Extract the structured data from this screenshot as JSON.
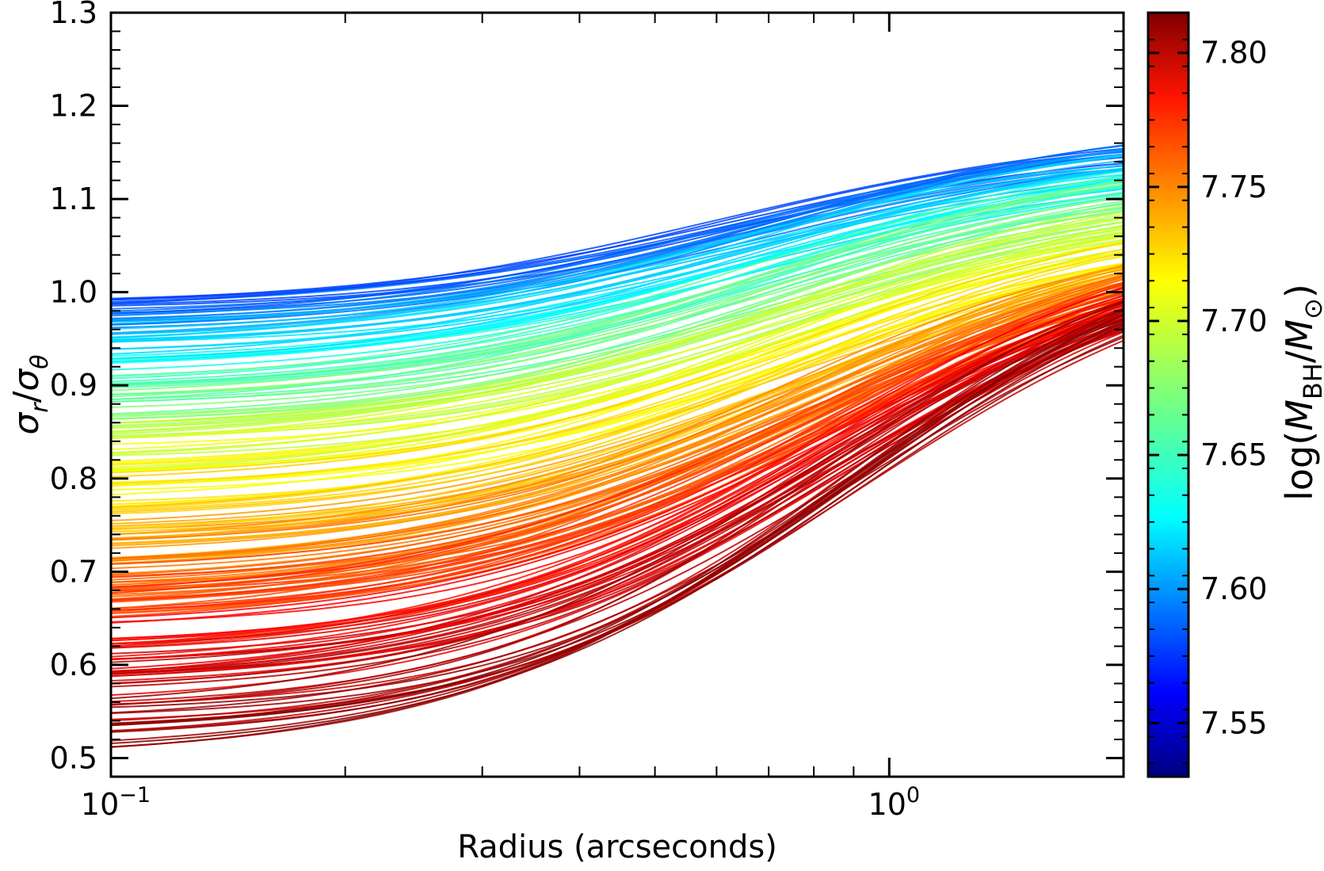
{
  "chart_data": {
    "type": "line",
    "title": "",
    "xlabel": "Radius (arcseconds)",
    "ylabel_main": "σ",
    "ylabel_sub_r": "r",
    "ylabel_slash": "/",
    "ylabel_sub_theta": "θ",
    "xscale": "log",
    "xlim": [
      0.1,
      2.0
    ],
    "ylim": [
      0.48,
      1.3
    ],
    "x_ticks": [
      {
        "value": 0.1,
        "base": "10",
        "exp": "−1"
      },
      {
        "value": 1.0,
        "base": "10",
        "exp": "0"
      }
    ],
    "y_ticks": [
      {
        "value": 0.5,
        "label": "0.5"
      },
      {
        "value": 0.6,
        "label": "0.6"
      },
      {
        "value": 0.7,
        "label": "0.7"
      },
      {
        "value": 0.8,
        "label": "0.8"
      },
      {
        "value": 0.9,
        "label": "0.9"
      },
      {
        "value": 1.0,
        "label": "1.0"
      },
      {
        "value": 1.1,
        "label": "1.1"
      },
      {
        "value": 1.2,
        "label": "1.2"
      },
      {
        "value": 1.3,
        "label": "1.3"
      }
    ],
    "grid": false,
    "colorbar": {
      "label_prefix": "log(",
      "label_M": "M",
      "label_sub_BH": "BH",
      "label_slash": "/",
      "label_sub_sun": "⊙",
      "label_suffix": ")",
      "colormap": "jet",
      "range": [
        7.53,
        7.815
      ],
      "ticks": [
        {
          "value": 7.55,
          "label": "7.55"
        },
        {
          "value": 7.6,
          "label": "7.60"
        },
        {
          "value": 7.65,
          "label": "7.65"
        },
        {
          "value": 7.7,
          "label": "7.70"
        },
        {
          "value": 7.75,
          "label": "7.75"
        },
        {
          "value": 7.8,
          "label": "7.80"
        }
      ]
    },
    "series_model": "sigmoid in log radius",
    "series_count": 240,
    "series_x_range": [
      0.1,
      2.0
    ],
    "series": [
      {
        "y_at_0.1": 1.0,
        "y_at_2.0": 1.16,
        "log_mbh": 7.58
      },
      {
        "y_at_0.1": 0.95,
        "y_at_2.0": 1.13,
        "log_mbh": 7.62
      },
      {
        "y_at_0.1": 0.9,
        "y_at_2.0": 1.1,
        "log_mbh": 7.66
      },
      {
        "y_at_0.1": 0.85,
        "y_at_2.0": 1.07,
        "log_mbh": 7.69
      },
      {
        "y_at_0.1": 0.8,
        "y_at_2.0": 1.04,
        "log_mbh": 7.71
      },
      {
        "y_at_0.1": 0.75,
        "y_at_2.0": 1.02,
        "log_mbh": 7.73
      },
      {
        "y_at_0.1": 0.7,
        "y_at_2.0": 1.0,
        "log_mbh": 7.75
      },
      {
        "y_at_0.1": 0.65,
        "y_at_2.0": 0.99,
        "log_mbh": 7.77
      },
      {
        "y_at_0.1": 0.6,
        "y_at_2.0": 0.98,
        "log_mbh": 7.79
      },
      {
        "y_at_0.1": 0.55,
        "y_at_2.0": 0.97,
        "log_mbh": 7.8
      },
      {
        "y_at_0.1": 0.51,
        "y_at_2.0": 0.96,
        "log_mbh": 7.81
      }
    ]
  }
}
